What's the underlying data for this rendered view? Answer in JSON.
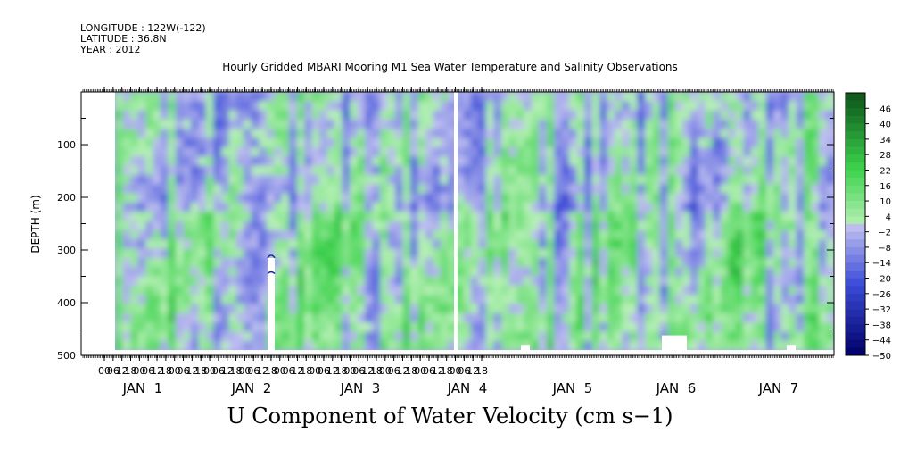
{
  "header": {
    "longitude": "LONGITUDE : 122W(-122)",
    "latitude": "LATITUDE : 36.8N",
    "year": "YEAR : 2012"
  },
  "chart_data": {
    "type": "heatmap",
    "title": "Hourly Gridded MBARI Mooring M1 Sea Water Temperature and Salinity Observations",
    "xlabel_bottom": "U Component of Water Velocity (cm s−1)",
    "ylabel": "DEPTH (m)",
    "y_ticks": [
      100,
      200,
      300,
      400,
      500
    ],
    "ylim": [
      500,
      0
    ],
    "x_hour_ticks": [
      "00",
      "06",
      "12",
      "18",
      "00",
      "06",
      "12",
      "18",
      "00",
      "06",
      "12",
      "18",
      "00",
      "06",
      "12",
      "18",
      "00",
      "06",
      "12",
      "18",
      "00",
      "06",
      "12",
      "18",
      "00",
      "06",
      "12",
      "18",
      "00",
      "06",
      "12",
      "18",
      "00",
      "06",
      "12",
      "18",
      "00",
      "06",
      "12",
      "18",
      "00",
      "06",
      "12",
      "18"
    ],
    "x_day_labels": [
      "JAN  1",
      "JAN  2",
      "JAN  3",
      "JAN  4",
      "JAN  5",
      "JAN  6",
      "JAN  7"
    ],
    "colorbar_ticks": [
      "46",
      "40",
      "34",
      "28",
      "22",
      "16",
      "10",
      "4",
      "−2",
      "−8",
      "−14",
      "−20",
      "−26",
      "−32",
      "−38",
      "−44",
      "−50"
    ],
    "colorbar_range": [
      -50,
      52
    ],
    "colorbar_step": 3,
    "data_gaps": [
      "JAN 4 ~06:00–08:00 (all depths)",
      "JAN 2 ~13:00–14:00 below ~310 m"
    ],
    "colors": {
      "positive_light": "#b8f0b8",
      "positive_mid": "#3cd24b",
      "positive_dark": "#0f5a1c",
      "negative_light": "#c0c0f0",
      "negative_mid": "#3a4ad8",
      "negative_dark": "#000066"
    }
  }
}
